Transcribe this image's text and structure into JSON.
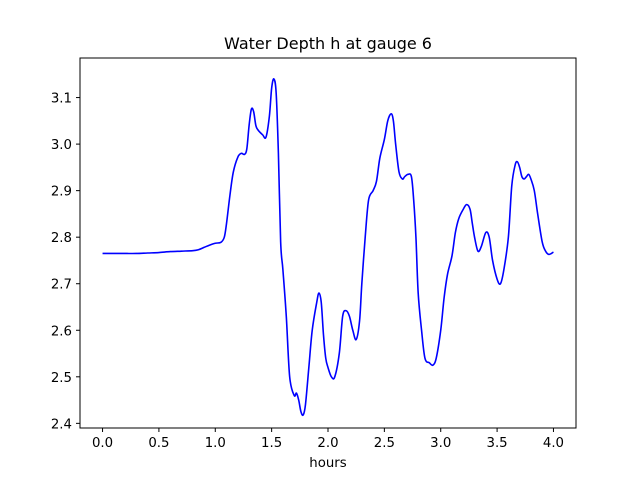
{
  "chart_data": {
    "type": "line",
    "title": "Water Depth h at gauge 6",
    "xlabel": "hours",
    "ylabel": "",
    "xlim": [
      -0.2,
      4.2
    ],
    "ylim": [
      2.39,
      3.185
    ],
    "xticks": [
      0.0,
      0.5,
      1.0,
      1.5,
      2.0,
      2.5,
      3.0,
      3.5,
      4.0
    ],
    "xtick_labels": [
      "0.0",
      "0.5",
      "1.0",
      "1.5",
      "2.0",
      "2.5",
      "3.0",
      "3.5",
      "4.0"
    ],
    "yticks": [
      2.4,
      2.5,
      2.6,
      2.7,
      2.8,
      2.9,
      3.0,
      3.1
    ],
    "ytick_labels": [
      "2.4",
      "2.5",
      "2.6",
      "2.7",
      "2.8",
      "2.9",
      "3.0",
      "3.1"
    ],
    "grid": false,
    "series": [
      {
        "color": "#0000ff",
        "x": [
          0.0,
          0.1,
          0.2,
          0.3,
          0.4,
          0.5,
          0.6,
          0.7,
          0.8,
          0.85,
          0.9,
          0.95,
          1.0,
          1.05,
          1.08,
          1.1,
          1.13,
          1.16,
          1.2,
          1.23,
          1.26,
          1.28,
          1.3,
          1.32,
          1.34,
          1.36,
          1.38,
          1.42,
          1.45,
          1.48,
          1.5,
          1.52,
          1.54,
          1.56,
          1.58,
          1.6,
          1.63,
          1.66,
          1.7,
          1.72,
          1.74,
          1.76,
          1.78,
          1.8,
          1.83,
          1.86,
          1.9,
          1.92,
          1.94,
          1.96,
          1.98,
          2.0,
          2.03,
          2.06,
          2.1,
          2.13,
          2.16,
          2.19,
          2.22,
          2.25,
          2.28,
          2.3,
          2.33,
          2.36,
          2.4,
          2.43,
          2.46,
          2.5,
          2.53,
          2.56,
          2.58,
          2.6,
          2.63,
          2.66,
          2.68,
          2.71,
          2.74,
          2.76,
          2.78,
          2.8,
          2.83,
          2.86,
          2.9,
          2.93,
          2.96,
          3.0,
          3.03,
          3.06,
          3.1,
          3.13,
          3.16,
          3.2,
          3.23,
          3.26,
          3.28,
          3.3,
          3.33,
          3.36,
          3.4,
          3.43,
          3.46,
          3.5,
          3.53,
          3.56,
          3.6,
          3.63,
          3.66,
          3.68,
          3.7,
          3.72,
          3.74,
          3.76,
          3.78,
          3.8,
          3.83,
          3.86,
          3.9,
          3.93,
          3.96,
          4.0
        ],
        "y": [
          2.765,
          2.765,
          2.765,
          2.765,
          2.766,
          2.767,
          2.769,
          2.77,
          2.771,
          2.773,
          2.778,
          2.783,
          2.787,
          2.789,
          2.8,
          2.83,
          2.89,
          2.94,
          2.972,
          2.98,
          2.978,
          2.99,
          3.04,
          3.075,
          3.07,
          3.04,
          3.03,
          3.02,
          3.015,
          3.06,
          3.12,
          3.14,
          3.11,
          2.98,
          2.79,
          2.73,
          2.63,
          2.5,
          2.46,
          2.465,
          2.45,
          2.425,
          2.418,
          2.44,
          2.52,
          2.6,
          2.66,
          2.68,
          2.66,
          2.59,
          2.54,
          2.52,
          2.5,
          2.5,
          2.55,
          2.63,
          2.642,
          2.63,
          2.6,
          2.58,
          2.62,
          2.7,
          2.8,
          2.88,
          2.9,
          2.92,
          2.97,
          3.01,
          3.05,
          3.065,
          3.05,
          3.0,
          2.94,
          2.925,
          2.93,
          2.935,
          2.93,
          2.88,
          2.8,
          2.68,
          2.6,
          2.54,
          2.53,
          2.525,
          2.54,
          2.6,
          2.67,
          2.72,
          2.76,
          2.81,
          2.84,
          2.86,
          2.87,
          2.86,
          2.83,
          2.8,
          2.77,
          2.78,
          2.81,
          2.8,
          2.75,
          2.71,
          2.7,
          2.73,
          2.8,
          2.91,
          2.955,
          2.962,
          2.95,
          2.93,
          2.925,
          2.93,
          2.935,
          2.925,
          2.9,
          2.85,
          2.79,
          2.77,
          2.763,
          2.768
        ]
      }
    ]
  }
}
